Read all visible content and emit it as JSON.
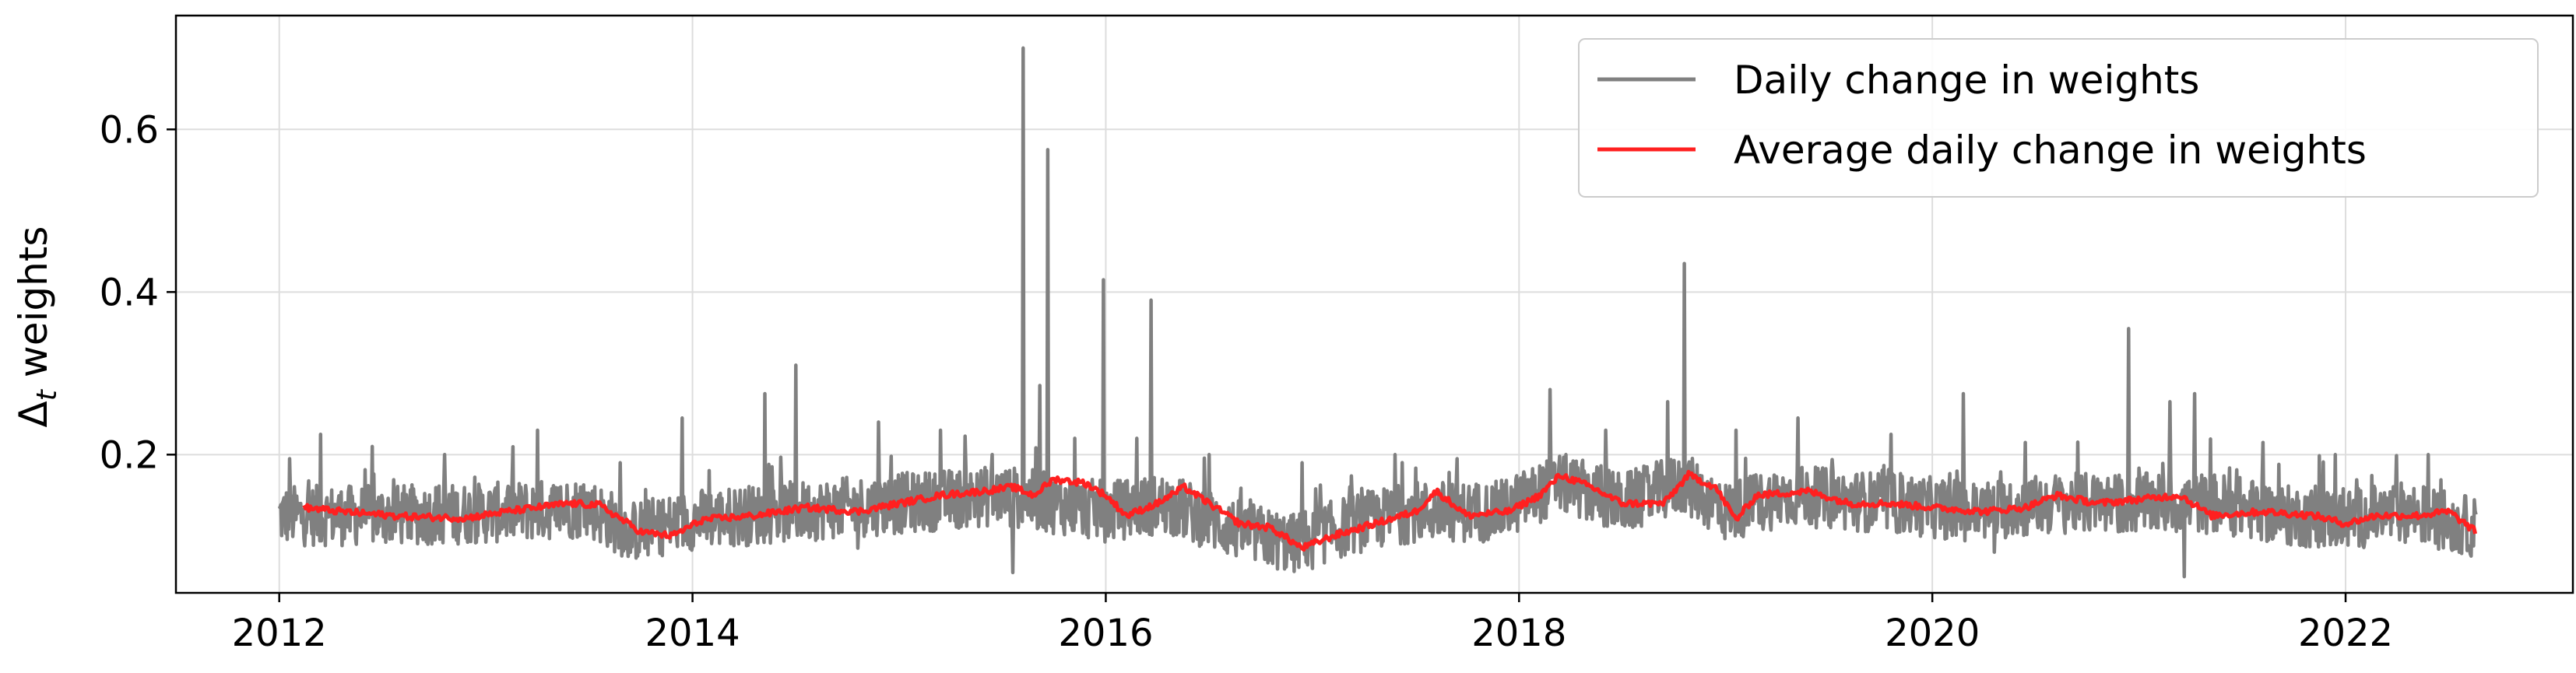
{
  "chart_data": {
    "type": "line",
    "title": "",
    "xlabel": "",
    "ylabel": "Δt weights",
    "ylabel_main": "Δ",
    "ylabel_sub": "t",
    "ylabel_rest": " weights",
    "xlim": [
      2011.5,
      2023.1
    ],
    "ylim": [
      0.03,
      0.74
    ],
    "x_ticks": [
      2012,
      2014,
      2016,
      2018,
      2020,
      2022
    ],
    "x_tick_labels": [
      "2012",
      "2014",
      "2016",
      "2018",
      "2020",
      "2022"
    ],
    "y_ticks": [
      0.2,
      0.4,
      0.6
    ],
    "y_tick_labels": [
      "0.2",
      "0.4",
      "0.6"
    ],
    "grid": true,
    "legend_position": "top-right",
    "series": [
      {
        "name": "Daily change in weights",
        "color": "#808080",
        "kind": "daily",
        "baseline": [
          [
            2012.0,
            0.125
          ],
          [
            2012.5,
            0.125
          ],
          [
            2013.0,
            0.128
          ],
          [
            2013.5,
            0.135
          ],
          [
            2013.7,
            0.105
          ],
          [
            2014.0,
            0.12
          ],
          [
            2014.5,
            0.13
          ],
          [
            2015.0,
            0.14
          ],
          [
            2015.5,
            0.15
          ],
          [
            2016.0,
            0.13
          ],
          [
            2016.3,
            0.14
          ],
          [
            2016.6,
            0.11
          ],
          [
            2016.9,
            0.09
          ],
          [
            2017.2,
            0.115
          ],
          [
            2017.5,
            0.13
          ],
          [
            2017.9,
            0.13
          ],
          [
            2018.2,
            0.165
          ],
          [
            2018.5,
            0.14
          ],
          [
            2018.8,
            0.165
          ],
          [
            2019.0,
            0.13
          ],
          [
            2019.3,
            0.15
          ],
          [
            2019.8,
            0.14
          ],
          [
            2020.2,
            0.13
          ],
          [
            2020.6,
            0.14
          ],
          [
            2021.0,
            0.14
          ],
          [
            2021.4,
            0.14
          ],
          [
            2021.7,
            0.125
          ],
          [
            2022.0,
            0.12
          ],
          [
            2022.3,
            0.13
          ],
          [
            2022.63,
            0.11
          ]
        ],
        "spikes": [
          [
            2012.05,
            0.195
          ],
          [
            2012.2,
            0.225
          ],
          [
            2012.45,
            0.21
          ],
          [
            2012.8,
            0.2
          ],
          [
            2013.25,
            0.23
          ],
          [
            2013.65,
            0.19
          ],
          [
            2013.95,
            0.245
          ],
          [
            2014.35,
            0.275
          ],
          [
            2014.5,
            0.31
          ],
          [
            2014.9,
            0.24
          ],
          [
            2015.2,
            0.23
          ],
          [
            2015.45,
            0.2
          ],
          [
            2015.6,
            0.7
          ],
          [
            2015.68,
            0.285
          ],
          [
            2015.72,
            0.575
          ],
          [
            2015.85,
            0.22
          ],
          [
            2015.99,
            0.415
          ],
          [
            2016.15,
            0.22
          ],
          [
            2016.22,
            0.39
          ],
          [
            2016.5,
            0.2
          ],
          [
            2016.95,
            0.19
          ],
          [
            2017.4,
            0.2
          ],
          [
            2017.7,
            0.195
          ],
          [
            2018.15,
            0.28
          ],
          [
            2018.42,
            0.23
          ],
          [
            2018.72,
            0.265
          ],
          [
            2018.8,
            0.435
          ],
          [
            2019.05,
            0.23
          ],
          [
            2019.35,
            0.245
          ],
          [
            2019.8,
            0.225
          ],
          [
            2020.15,
            0.275
          ],
          [
            2020.45,
            0.215
          ],
          [
            2020.95,
            0.355
          ],
          [
            2021.15,
            0.265
          ],
          [
            2021.27,
            0.275
          ],
          [
            2021.6,
            0.215
          ],
          [
            2021.95,
            0.2
          ],
          [
            2022.4,
            0.2
          ]
        ],
        "dips": [
          [
            2013.7,
            0.08
          ],
          [
            2014.8,
            0.085
          ],
          [
            2015.55,
            0.055
          ],
          [
            2016.8,
            0.07
          ],
          [
            2017.0,
            0.06
          ],
          [
            2020.3,
            0.08
          ],
          [
            2021.22,
            0.05
          ],
          [
            2022.55,
            0.08
          ]
        ]
      },
      {
        "name": "Average daily change in weights",
        "color": "#ff2020",
        "kind": "average",
        "points": [
          [
            2012.12,
            0.135
          ],
          [
            2012.3,
            0.13
          ],
          [
            2012.6,
            0.124
          ],
          [
            2012.9,
            0.122
          ],
          [
            2013.1,
            0.13
          ],
          [
            2013.4,
            0.14
          ],
          [
            2013.55,
            0.138
          ],
          [
            2013.75,
            0.105
          ],
          [
            2013.9,
            0.1
          ],
          [
            2014.05,
            0.12
          ],
          [
            2014.3,
            0.125
          ],
          [
            2014.55,
            0.135
          ],
          [
            2014.8,
            0.13
          ],
          [
            2015.0,
            0.14
          ],
          [
            2015.2,
            0.15
          ],
          [
            2015.4,
            0.155
          ],
          [
            2015.55,
            0.16
          ],
          [
            2015.65,
            0.15
          ],
          [
            2015.75,
            0.17
          ],
          [
            2015.9,
            0.165
          ],
          [
            2016.0,
            0.15
          ],
          [
            2016.1,
            0.125
          ],
          [
            2016.25,
            0.14
          ],
          [
            2016.38,
            0.16
          ],
          [
            2016.5,
            0.14
          ],
          [
            2016.65,
            0.115
          ],
          [
            2016.8,
            0.11
          ],
          [
            2016.95,
            0.085
          ],
          [
            2017.1,
            0.1
          ],
          [
            2017.3,
            0.115
          ],
          [
            2017.5,
            0.13
          ],
          [
            2017.6,
            0.155
          ],
          [
            2017.75,
            0.125
          ],
          [
            2017.95,
            0.13
          ],
          [
            2018.1,
            0.15
          ],
          [
            2018.2,
            0.175
          ],
          [
            2018.35,
            0.16
          ],
          [
            2018.5,
            0.14
          ],
          [
            2018.7,
            0.14
          ],
          [
            2018.82,
            0.175
          ],
          [
            2018.95,
            0.16
          ],
          [
            2019.05,
            0.12
          ],
          [
            2019.15,
            0.15
          ],
          [
            2019.4,
            0.155
          ],
          [
            2019.6,
            0.14
          ],
          [
            2019.8,
            0.14
          ],
          [
            2020.0,
            0.135
          ],
          [
            2020.25,
            0.13
          ],
          [
            2020.45,
            0.135
          ],
          [
            2020.6,
            0.15
          ],
          [
            2020.8,
            0.14
          ],
          [
            2021.0,
            0.145
          ],
          [
            2021.2,
            0.15
          ],
          [
            2021.35,
            0.125
          ],
          [
            2021.6,
            0.13
          ],
          [
            2021.85,
            0.125
          ],
          [
            2022.0,
            0.115
          ],
          [
            2022.15,
            0.125
          ],
          [
            2022.35,
            0.125
          ],
          [
            2022.5,
            0.13
          ],
          [
            2022.63,
            0.105
          ]
        ]
      }
    ]
  }
}
